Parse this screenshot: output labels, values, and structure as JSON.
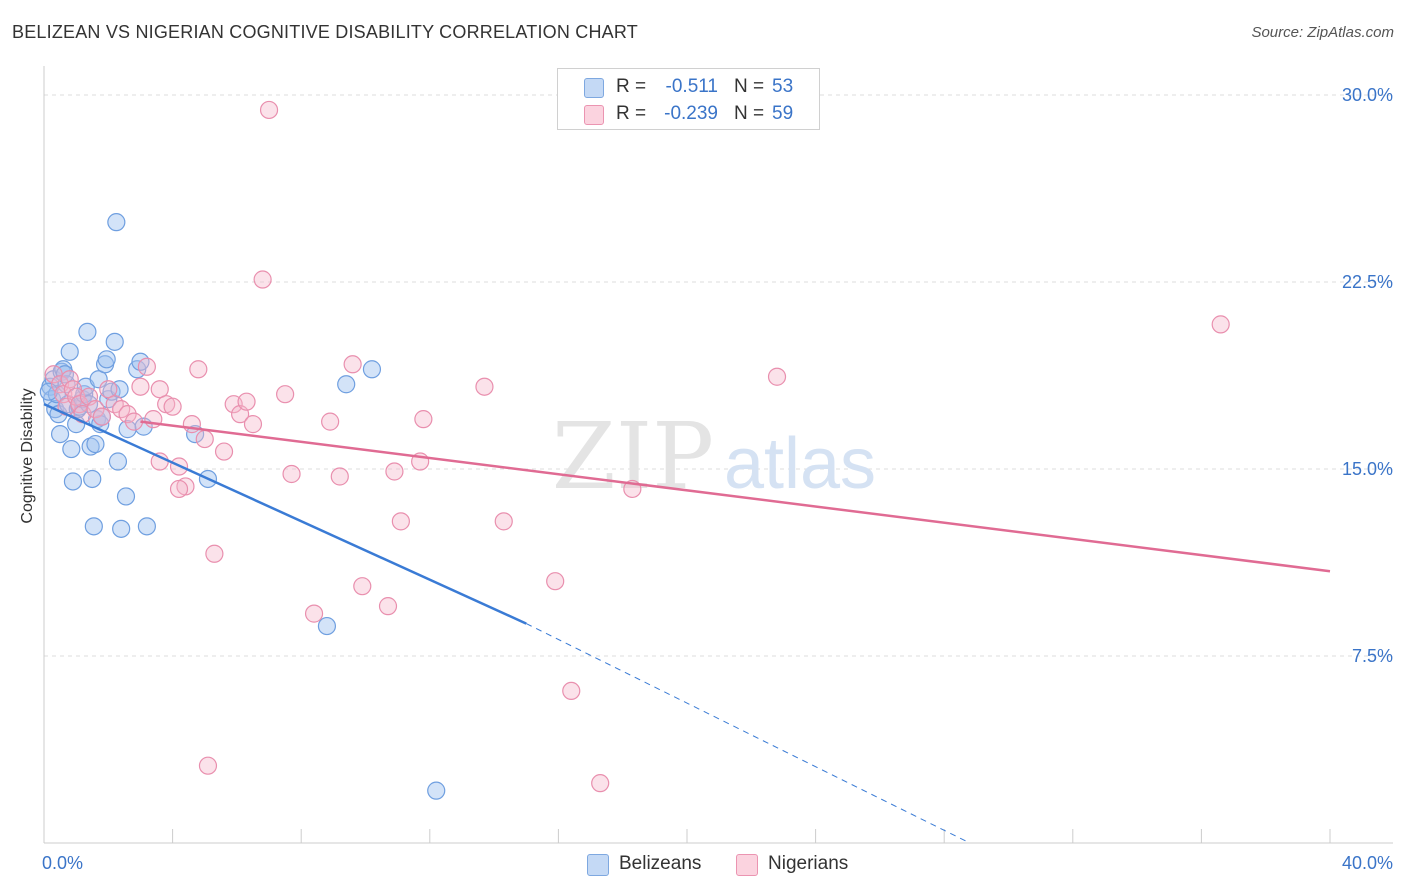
{
  "header": {
    "title": "BELIZEAN VS NIGERIAN COGNITIVE DISABILITY CORRELATION CHART",
    "source": "Source: ZipAtlas.com"
  },
  "legend": {
    "rows": [
      {
        "r_label": "R =",
        "r_value": "-0.511",
        "n_label": "N =",
        "n_value": "53",
        "color": "#a9c6ef"
      },
      {
        "r_label": "R =",
        "r_value": "-0.239",
        "n_label": "N =",
        "n_value": "59",
        "color": "#f6b7cb"
      }
    ],
    "bottom": [
      {
        "label": "Belizeans",
        "color": "#a9c6ef"
      },
      {
        "label": "Nigerians",
        "color": "#f6b7cb"
      }
    ]
  },
  "watermark": {
    "text_a": "ZIP",
    "text_b": "atlas"
  },
  "chart_data": {
    "type": "scatter",
    "ylabel": "Cognitive Disability",
    "xlim": [
      0,
      40
    ],
    "ylim": [
      0,
      30
    ],
    "x_tick_labels": [
      {
        "value": 0,
        "label": "0.0%"
      },
      {
        "value": 40,
        "label": "40.0%"
      }
    ],
    "y_tick_labels": [
      {
        "value": 7.5,
        "label": "7.5%"
      },
      {
        "value": 15,
        "label": "15.0%"
      },
      {
        "value": 22.5,
        "label": "22.5%"
      },
      {
        "value": 30,
        "label": "30.0%"
      }
    ],
    "grid": true,
    "colors": {
      "belizeans": "#3a7bd5",
      "nigerians": "#e06b93",
      "tick_label": "#3a74c8"
    },
    "series": [
      {
        "name": "Belizeans",
        "points": [
          [
            0.2,
            18.3
          ],
          [
            0.25,
            17.8
          ],
          [
            0.3,
            18.6
          ],
          [
            0.35,
            17.4
          ],
          [
            0.4,
            18.0
          ],
          [
            0.45,
            17.2
          ],
          [
            0.5,
            16.4
          ],
          [
            0.55,
            18.9
          ],
          [
            0.6,
            19.0
          ],
          [
            0.7,
            18.4
          ],
          [
            0.75,
            17.6
          ],
          [
            0.8,
            19.7
          ],
          [
            0.85,
            15.8
          ],
          [
            0.9,
            14.5
          ],
          [
            1.0,
            16.8
          ],
          [
            1.05,
            17.4
          ],
          [
            1.1,
            17.5
          ],
          [
            1.2,
            17.8
          ],
          [
            1.25,
            18.0
          ],
          [
            1.3,
            18.3
          ],
          [
            1.35,
            20.5
          ],
          [
            1.4,
            17.6
          ],
          [
            1.45,
            15.9
          ],
          [
            1.5,
            14.6
          ],
          [
            1.55,
            12.7
          ],
          [
            1.6,
            16.0
          ],
          [
            1.65,
            17.0
          ],
          [
            1.7,
            18.6
          ],
          [
            1.75,
            16.8
          ],
          [
            1.8,
            17.1
          ],
          [
            1.9,
            19.2
          ],
          [
            1.95,
            19.4
          ],
          [
            2.0,
            17.8
          ],
          [
            2.1,
            18.1
          ],
          [
            2.2,
            20.1
          ],
          [
            2.3,
            15.3
          ],
          [
            2.35,
            18.2
          ],
          [
            2.25,
            24.9
          ],
          [
            2.4,
            12.6
          ],
          [
            2.55,
            13.9
          ],
          [
            2.6,
            16.6
          ],
          [
            2.9,
            19.0
          ],
          [
            3.0,
            19.3
          ],
          [
            3.1,
            16.7
          ],
          [
            3.2,
            12.7
          ],
          [
            4.7,
            16.4
          ],
          [
            5.1,
            14.6
          ],
          [
            8.8,
            8.7
          ],
          [
            9.4,
            18.4
          ],
          [
            10.2,
            19.0
          ],
          [
            12.2,
            2.1
          ],
          [
            0.15,
            18.1
          ],
          [
            0.65,
            18.8
          ]
        ]
      },
      {
        "name": "Nigerians",
        "points": [
          [
            0.3,
            18.8
          ],
          [
            0.5,
            18.4
          ],
          [
            0.6,
            18.0
          ],
          [
            0.7,
            17.5
          ],
          [
            0.8,
            18.6
          ],
          [
            0.9,
            18.2
          ],
          [
            1.0,
            17.9
          ],
          [
            1.1,
            17.6
          ],
          [
            1.2,
            17.2
          ],
          [
            1.4,
            17.9
          ],
          [
            1.6,
            17.4
          ],
          [
            1.8,
            17.1
          ],
          [
            2.0,
            18.2
          ],
          [
            2.2,
            17.6
          ],
          [
            2.4,
            17.4
          ],
          [
            2.6,
            17.2
          ],
          [
            2.8,
            16.9
          ],
          [
            3.0,
            18.3
          ],
          [
            3.2,
            19.1
          ],
          [
            3.4,
            17.0
          ],
          [
            3.6,
            18.2
          ],
          [
            3.8,
            17.6
          ],
          [
            4.0,
            17.5
          ],
          [
            4.2,
            15.1
          ],
          [
            4.4,
            14.3
          ],
          [
            4.6,
            16.8
          ],
          [
            4.8,
            19.0
          ],
          [
            5.0,
            16.2
          ],
          [
            5.3,
            11.6
          ],
          [
            5.6,
            15.7
          ],
          [
            5.9,
            17.6
          ],
          [
            6.1,
            17.2
          ],
          [
            6.3,
            17.7
          ],
          [
            6.5,
            16.8
          ],
          [
            6.8,
            22.6
          ],
          [
            7.0,
            29.4
          ],
          [
            7.5,
            18.0
          ],
          [
            7.7,
            14.8
          ],
          [
            8.4,
            9.2
          ],
          [
            8.9,
            16.9
          ],
          [
            9.2,
            14.7
          ],
          [
            9.6,
            19.2
          ],
          [
            9.9,
            10.3
          ],
          [
            10.7,
            9.5
          ],
          [
            10.9,
            14.9
          ],
          [
            11.1,
            12.9
          ],
          [
            11.7,
            15.3
          ],
          [
            11.8,
            17.0
          ],
          [
            13.7,
            18.3
          ],
          [
            14.3,
            12.9
          ],
          [
            15.9,
            10.5
          ],
          [
            16.4,
            6.1
          ],
          [
            17.3,
            2.4
          ],
          [
            18.3,
            14.2
          ],
          [
            22.8,
            18.7
          ],
          [
            36.6,
            20.8
          ],
          [
            5.1,
            3.1
          ],
          [
            3.6,
            15.3
          ],
          [
            4.2,
            14.2
          ]
        ]
      }
    ],
    "trend_lines": [
      {
        "series": "Belizeans",
        "from": [
          0,
          17.6
        ],
        "to": [
          15,
          8.8
        ],
        "dashed_to": [
          28.8,
          0
        ]
      },
      {
        "series": "Nigerians",
        "from": [
          3,
          16.9
        ],
        "to": [
          40,
          10.9
        ]
      }
    ]
  }
}
